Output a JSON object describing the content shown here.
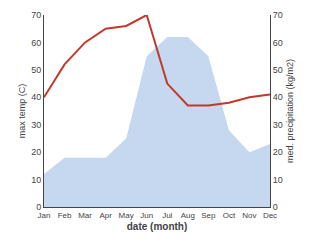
{
  "chart_data": {
    "type": "line",
    "categories": [
      "Jan",
      "Feb",
      "Mar",
      "Apr",
      "May",
      "Jun",
      "Jul",
      "Aug",
      "Sep",
      "Oct",
      "Nov",
      "Dec"
    ],
    "series": [
      {
        "type": "area",
        "axis": "y2",
        "color": "#c5d8f0",
        "values": [
          12,
          18,
          18,
          18,
          25,
          55,
          62,
          62,
          55,
          28,
          20,
          23
        ]
      },
      {
        "type": "line",
        "color": "#c0392b",
        "values": [
          40,
          52,
          60,
          65,
          66,
          70,
          45,
          37,
          37,
          38,
          40,
          41
        ]
      }
    ],
    "xlabel": "date (month)",
    "ylabel": "max temp (C)",
    "y2label": "med. precipitation (kg/m2)",
    "ylim": [
      0,
      70
    ],
    "yticks": [
      0,
      10,
      20,
      30,
      40,
      50,
      60,
      70
    ],
    "y2lim": [
      0,
      70
    ],
    "y2ticks": [
      0,
      10,
      20,
      30,
      40,
      50,
      60,
      70
    ],
    "grid": false
  }
}
